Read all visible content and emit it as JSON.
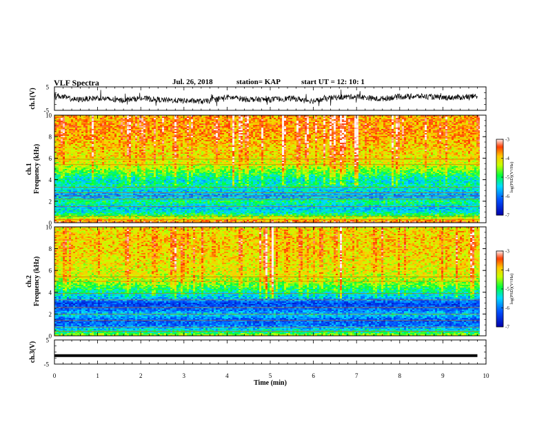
{
  "header": {
    "title": "VLF Spectra",
    "date": "Jul. 26, 2018",
    "station": "station= KAP",
    "start": "start  UT =   12: 10: 1"
  },
  "chart_data": [
    {
      "type": "line",
      "panel": "ch1-waveform",
      "ylabel": "ch.1(V)",
      "ylim": [
        -5,
        5
      ],
      "yticks": [
        "5",
        "-5"
      ],
      "x": [
        0,
        0.5,
        1,
        1.5,
        2,
        2.5,
        3,
        3.5,
        4,
        4.5,
        5,
        5.5,
        6,
        6.5,
        7,
        7.5,
        8,
        8.5,
        9,
        9.5,
        9.8
      ],
      "y": [
        1.5,
        -0.5,
        0.3,
        -0.8,
        0.2,
        -0.6,
        -0.9,
        -1.2,
        0.6,
        -0.3,
        -0.4,
        0.1,
        -1.0,
        0.5,
        0.9,
        -0.2,
        0.8,
        1.0,
        0.4,
        0.6,
        1.1
      ]
    },
    {
      "type": "heatmap",
      "panel": "ch1-spectrogram",
      "ylabel": "ch.1\nFrequency (kHz)",
      "ylim": [
        0,
        10
      ],
      "yticks": [
        "0",
        "2",
        "4",
        "6",
        "8",
        "10"
      ],
      "xlim": [
        0,
        10
      ],
      "profile_khz": [
        0,
        0.5,
        1,
        1.5,
        2,
        2.5,
        3,
        3.5,
        4,
        4.5,
        5,
        5.5,
        6,
        7,
        8,
        9,
        10
      ],
      "profile_logpsd": [
        -3.2,
        -4.3,
        -5.3,
        -5.6,
        -5.0,
        -5.8,
        -5.5,
        -5.2,
        -5.4,
        -5.0,
        -4.6,
        -4.3,
        -4.1,
        -4.0,
        -3.8,
        -3.7,
        -3.8
      ],
      "lines_khz": [
        0.3,
        0.6,
        1.5,
        2.2,
        2.5,
        2.8,
        3.3,
        5.4,
        5.9
      ],
      "colorbar": {
        "label": "log(PSD)(V²/Hz)",
        "range": [
          -7,
          -3
        ],
        "ticks": [
          "-3",
          "-4",
          "-5",
          "-6",
          "-7"
        ]
      }
    },
    {
      "type": "heatmap",
      "panel": "ch2-spectrogram",
      "ylabel": "ch.2\nFrequency (kHz)",
      "ylim": [
        0,
        10
      ],
      "yticks": [
        "0",
        "2",
        "4",
        "6",
        "8",
        "10"
      ],
      "xlim": [
        0,
        10
      ],
      "profile_khz": [
        0,
        0.5,
        1,
        1.5,
        2,
        2.5,
        3,
        3.5,
        4,
        4.5,
        5,
        5.5,
        6,
        7,
        8,
        9,
        10
      ],
      "profile_logpsd": [
        -4.2,
        -5.3,
        -6.0,
        -6.2,
        -5.5,
        -6.1,
        -6.3,
        -5.7,
        -5.3,
        -4.9,
        -4.5,
        -4.3,
        -4.2,
        -4.1,
        -4.0,
        -4.0,
        -4.1
      ],
      "lines_khz": [
        0.4,
        0.8,
        1.4,
        2.0,
        2.6,
        3.3,
        3.9,
        5.0,
        5.4
      ],
      "colorbar": {
        "label": "log(PSD)(V²/Hz)",
        "range": [
          -7,
          -3
        ],
        "ticks": [
          "-3",
          "-4",
          "-5",
          "-6",
          "-7"
        ]
      }
    },
    {
      "type": "line",
      "panel": "ch3-waveform",
      "ylabel": "ch.3(V)",
      "ylim": [
        -5,
        5
      ],
      "yticks": [
        "5",
        "-5"
      ],
      "x": [
        0,
        9.8
      ],
      "y": [
        -1.5,
        -1.5
      ]
    }
  ],
  "xaxis": {
    "label": "Time (min)",
    "xlim": [
      0,
      10
    ],
    "ticks": [
      "0",
      "1",
      "2",
      "3",
      "4",
      "5",
      "6",
      "7",
      "8",
      "9",
      "10"
    ]
  }
}
